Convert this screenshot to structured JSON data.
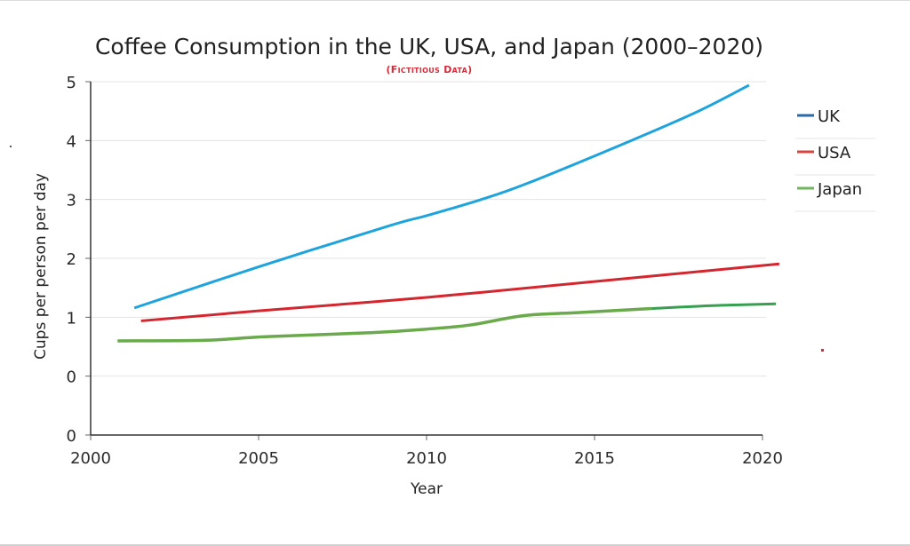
{
  "chart_data": {
    "type": "line",
    "title": "Coffee Consumption in the UK, USA, and Japan (2000–2020)",
    "subtitle": "(Fictitious Data)",
    "xlabel": "Year",
    "ylabel": "Cups per person per day",
    "xlim": [
      2000,
      2020
    ],
    "ylim": [
      0,
      5
    ],
    "x_ticks": [
      "2000",
      "2005",
      "2010",
      "2015",
      "2020"
    ],
    "y_ticks": [
      "5",
      "4",
      "3",
      "2",
      "1",
      "0",
      "0"
    ],
    "grid": true,
    "legend_position": "right",
    "series": [
      {
        "name": "UK",
        "color": "#1fa3dc",
        "legend_color": "#2a6aa8",
        "points": [
          [
            2001.3,
            1.15
          ],
          [
            2005.0,
            1.85
          ],
          [
            2008.9,
            2.55
          ],
          [
            2010.0,
            2.72
          ],
          [
            2011.6,
            2.99
          ],
          [
            2013.0,
            3.27
          ],
          [
            2016.1,
            4.0
          ],
          [
            2018.1,
            4.5
          ],
          [
            2019.6,
            4.94
          ]
        ]
      },
      {
        "name": "USA",
        "color": "#d3262f",
        "legend_color": "#d9443f",
        "points": [
          [
            2001.5,
            0.93
          ],
          [
            2005.0,
            1.1
          ],
          [
            2010.0,
            1.33
          ],
          [
            2015.0,
            1.6
          ],
          [
            2020.5,
            1.9
          ]
        ]
      },
      {
        "name": "Japan",
        "color": "#6aaa4c",
        "color_late": "#36a050",
        "legend_color": "#72b561",
        "color_change_year": 2016.7,
        "points": [
          [
            2000.8,
            0.59
          ],
          [
            2003.4,
            0.6
          ],
          [
            2005.2,
            0.66
          ],
          [
            2008.4,
            0.73
          ],
          [
            2010.0,
            0.79
          ],
          [
            2011.3,
            0.86
          ],
          [
            2012.9,
            1.02
          ],
          [
            2014.5,
            1.07
          ],
          [
            2016.7,
            1.14
          ],
          [
            2018.5,
            1.19
          ],
          [
            2020.4,
            1.22
          ]
        ]
      }
    ]
  }
}
